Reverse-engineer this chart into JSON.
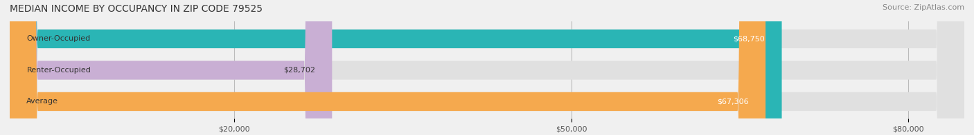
{
  "title": "MEDIAN INCOME BY OCCUPANCY IN ZIP CODE 79525",
  "source": "Source: ZipAtlas.com",
  "categories": [
    "Owner-Occupied",
    "Renter-Occupied",
    "Average"
  ],
  "values": [
    68750,
    28702,
    67306
  ],
  "bar_colors": [
    "#2ab5b5",
    "#c9afd4",
    "#f5a94e"
  ],
  "label_colors": [
    "#333333",
    "#333333",
    "#333333"
  ],
  "value_labels": [
    "$68,750",
    "$28,702",
    "$67,306"
  ],
  "value_label_colors": [
    "#ffffff",
    "#333333",
    "#ffffff"
  ],
  "xlim": [
    0,
    85000
  ],
  "xticks": [
    20000,
    50000,
    80000
  ],
  "xtick_labels": [
    "$20,000",
    "$50,000",
    "$80,000"
  ],
  "bar_height": 0.6,
  "background_color": "#f0f0f0",
  "bar_bg_color": "#e0e0e0",
  "title_fontsize": 10,
  "source_fontsize": 8,
  "label_fontsize": 8,
  "value_fontsize": 8,
  "tick_fontsize": 8
}
